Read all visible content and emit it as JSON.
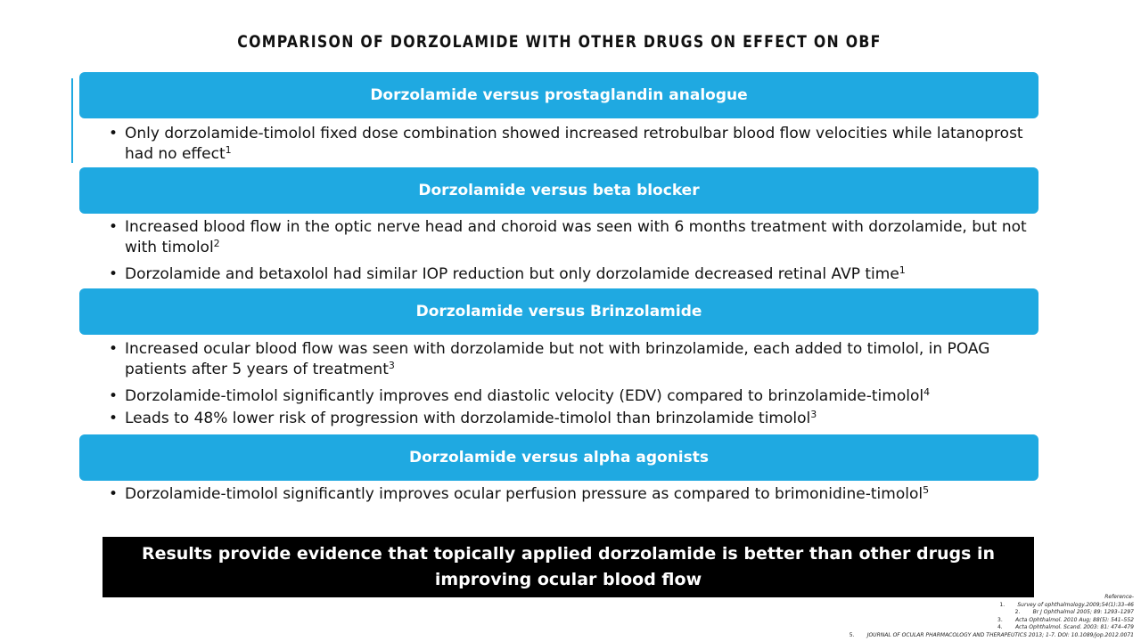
{
  "title": "COMPARISON OF DORZOLAMIDE WITH OTHER DRUGS ON EFFECT ON OBF",
  "sections": [
    {
      "heading": "Dorzolamide versus prostaglandin analogue",
      "bullets": [
        {
          "text": "Only dorzolamide-timolol fixed dose combination showed increased retrobulbar blood flow velocities while latanoprost had no effect",
          "sup": "1"
        }
      ]
    },
    {
      "heading": "Dorzolamide versus beta blocker",
      "bullets": [
        {
          "text": "Increased blood flow in the optic nerve head and choroid was seen with 6 months treatment with dorzolamide, but not with timolol",
          "sup": "2"
        },
        {
          "text": "Dorzolamide and betaxolol had similar IOP reduction but only dorzolamide decreased retinal AVP time",
          "sup": "1"
        }
      ]
    },
    {
      "heading": "Dorzolamide versus Brinzolamide",
      "bullets": [
        {
          "text": "Increased ocular blood flow was seen with dorzolamide but not with brinzolamide, each added to timolol, in POAG patients after 5 years of treatment",
          "sup": "3"
        },
        {
          "text": "Dorzolamide-timolol significantly improves end diastolic velocity (EDV) compared to brinzolamide-timolol",
          "sup": "4"
        },
        {
          "text": "Leads to 48% lower risk of progression with dorzolamide-timolol than brinzolamide timolol",
          "sup": "3"
        }
      ]
    },
    {
      "heading": "Dorzolamide versus alpha agonists",
      "bullets": [
        {
          "text": "Dorzolamide-timolol significantly improves ocular perfusion pressure as compared to brimonidine-timolol",
          "sup": "5"
        }
      ]
    }
  ],
  "bullet_char": "•",
  "conclusion": "Results provide evidence that topically applied dorzolamide is better than other drugs in improving ocular blood flow",
  "references": {
    "title": "Reference-",
    "items": [
      {
        "n": "1.",
        "text": "Survey of ophthalmology.2009;54(1):33–46"
      },
      {
        "n": "2.",
        "text": "Br J Ophthalmol 2005; 89: 1293–1297"
      },
      {
        "n": "3.",
        "text": "Acta Ophthalmol. 2010 Aug; 88(5): 541–552"
      },
      {
        "n": "4.",
        "text": "Acta Ophthalmol. Scand. 2003: 81: 474–479"
      },
      {
        "n": "5.",
        "text": "JOURNAL OF OCULAR PHARMACOLOGY AND THERAPEUTICS 2013; 1-7. DOI: 10.1089/jop.2012.0071"
      }
    ]
  },
  "colors": {
    "band": "#1fa9e1",
    "conclusion_bg": "#000000",
    "text": "#111111"
  }
}
